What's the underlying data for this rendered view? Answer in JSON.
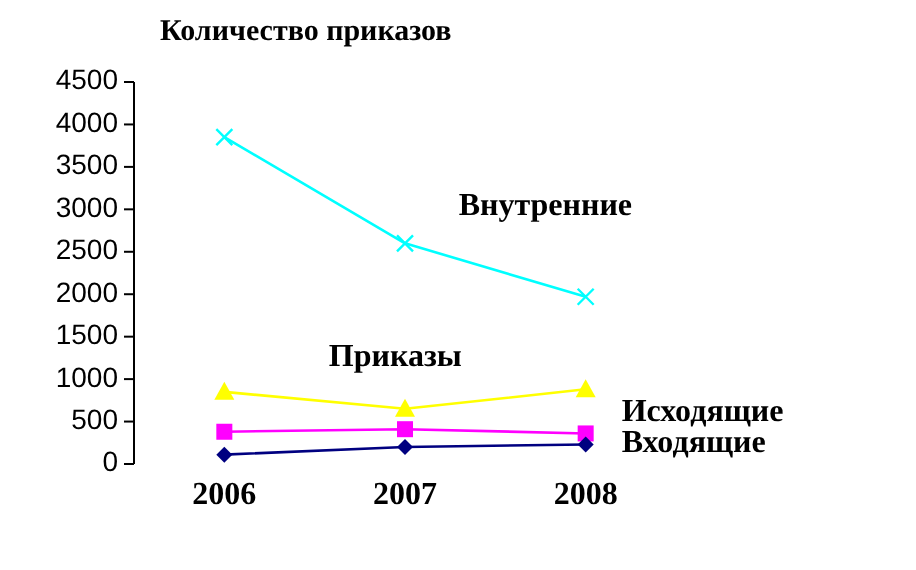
{
  "chart_data": {
    "type": "line",
    "title": "Количество приказов",
    "categories": [
      "2006",
      "2007",
      "2008"
    ],
    "ylim": [
      0,
      4500
    ],
    "yticks": [
      0,
      500,
      1000,
      1500,
      2000,
      2500,
      3000,
      3500,
      4000,
      4500
    ],
    "grid": false,
    "series": [
      {
        "name": "Внутренние",
        "color": "#00ffff",
        "marker": "cross",
        "values": [
          3850,
          2600,
          1970
        ]
      },
      {
        "name": "Приказы",
        "color": "#ffff00",
        "marker": "triangle",
        "values": [
          850,
          650,
          880
        ]
      },
      {
        "name": "Исходящие",
        "color": "#ff00ff",
        "marker": "square",
        "values": [
          380,
          410,
          360
        ]
      },
      {
        "name": "Входящие",
        "color": "#000080",
        "marker": "diamond",
        "values": [
          110,
          200,
          230
        ]
      }
    ]
  }
}
